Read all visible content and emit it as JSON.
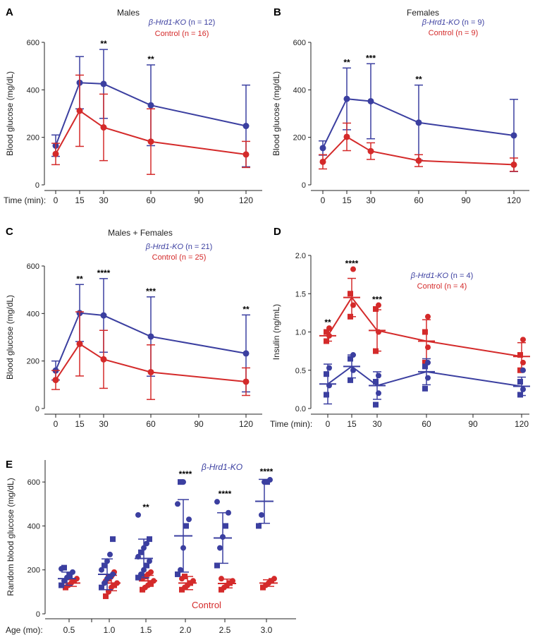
{
  "colors": {
    "ko": "#3b3fa0",
    "control": "#d42a2a",
    "axis": "#222222"
  },
  "labels": {
    "time": "Time (min):",
    "age": "Age (mo):",
    "ko": "β-Hrd1-KO",
    "control": "Control"
  },
  "chart_data": [
    {
      "panel": "A",
      "type": "line",
      "title": "Males",
      "ylabel": "Blood glucose (mg/dL)",
      "xlabel": "Time (min):",
      "ylim": [
        0,
        600
      ],
      "yticks": [
        0,
        200,
        400,
        600
      ],
      "x": [
        0,
        15,
        30,
        60,
        120
      ],
      "xticks": [
        0,
        15,
        30,
        60,
        90,
        120
      ],
      "legend": [
        {
          "label": "β-Hrd1-KO",
          "n": "(n = 12)"
        },
        {
          "label": "Control",
          "n": "(n = 16)"
        }
      ],
      "series": [
        {
          "name": "β-Hrd1-KO",
          "values": [
            165,
            430,
            425,
            335,
            248
          ],
          "err": [
            45,
            110,
            145,
            170,
            172
          ]
        },
        {
          "name": "Control",
          "values": [
            130,
            312,
            242,
            182,
            128
          ],
          "err": [
            45,
            150,
            140,
            138,
            55
          ]
        }
      ],
      "significance": [
        {
          "x": 30,
          "label": "**"
        },
        {
          "x": 60,
          "label": "**"
        }
      ]
    },
    {
      "panel": "B",
      "type": "line",
      "title": "Females",
      "ylabel": "Blood glucose (mg/dL)",
      "xlabel": "",
      "ylim": [
        0,
        600
      ],
      "yticks": [
        0,
        200,
        400,
        600
      ],
      "x": [
        0,
        15,
        30,
        60,
        120
      ],
      "xticks": [
        0,
        15,
        30,
        60,
        90,
        120
      ],
      "legend": [
        {
          "label": "β-Hrd1-KO",
          "n": "(n = 9)"
        },
        {
          "label": "Control",
          "n": "(n = 9)"
        }
      ],
      "series": [
        {
          "name": "β-Hrd1-KO",
          "values": [
            155,
            362,
            352,
            262,
            208
          ],
          "err": [
            30,
            130,
            158,
            158,
            152
          ]
        },
        {
          "name": "Control",
          "values": [
            97,
            202,
            142,
            102,
            85
          ],
          "err": [
            30,
            58,
            35,
            25,
            28
          ]
        }
      ],
      "significance": [
        {
          "x": 15,
          "label": "**"
        },
        {
          "x": 30,
          "label": "***"
        },
        {
          "x": 60,
          "label": "**"
        }
      ]
    },
    {
      "panel": "C",
      "type": "line",
      "title": "Males + Females",
      "ylabel": "Blood glucose (mg/dL)",
      "xlabel": "",
      "ylim": [
        0,
        600
      ],
      "yticks": [
        0,
        200,
        400,
        600
      ],
      "x": [
        0,
        15,
        30,
        60,
        120
      ],
      "xticks": [
        0,
        15,
        30,
        60,
        90,
        120
      ],
      "legend": [
        {
          "label": "β-Hrd1-KO",
          "n": "(n = 21)"
        },
        {
          "label": "Control",
          "n": "(n = 25)"
        }
      ],
      "series": [
        {
          "name": "β-Hrd1-KO",
          "values": [
            160,
            402,
            392,
            303,
            232
          ],
          "err": [
            40,
            120,
            155,
            167,
            162
          ]
        },
        {
          "name": "Control",
          "values": [
            120,
            272,
            207,
            153,
            113
          ],
          "err": [
            40,
            135,
            122,
            115,
            58
          ]
        }
      ],
      "significance": [
        {
          "x": 15,
          "label": "**"
        },
        {
          "x": 30,
          "label": "****"
        },
        {
          "x": 60,
          "label": "***"
        },
        {
          "x": 120,
          "label": "**"
        }
      ]
    },
    {
      "panel": "D",
      "type": "line",
      "title": "",
      "ylabel": "Insulin (ng/mL)",
      "xlabel": "Time (min):",
      "ylim": [
        0,
        2.0
      ],
      "yticks": [
        0.0,
        0.5,
        1.0,
        1.5,
        2.0
      ],
      "x": [
        0,
        15,
        30,
        60,
        120
      ],
      "xticks": [
        0,
        15,
        30,
        60,
        90,
        120
      ],
      "legend": [
        {
          "label": "β-Hrd1-KO",
          "n": "(n = 4)"
        },
        {
          "label": "Control",
          "n": "(n = 4)"
        }
      ],
      "series": [
        {
          "name": "Control",
          "values": [
            0.95,
            1.45,
            1.02,
            0.88,
            0.68
          ],
          "err": [
            0.07,
            0.25,
            0.27,
            0.28,
            0.18
          ],
          "points": [
            [
              0.88,
              0.95,
              1.0,
              1.05
            ],
            [
              1.2,
              1.35,
              1.5,
              1.82
            ],
            [
              0.75,
              1.0,
              1.3,
              1.35
            ],
            [
              0.6,
              0.8,
              1.0,
              1.2
            ],
            [
              0.5,
              0.6,
              0.7,
              0.9
            ]
          ]
        },
        {
          "name": "β-Hrd1-KO",
          "values": [
            0.32,
            0.55,
            0.3,
            0.48,
            0.29
          ],
          "err": [
            0.26,
            0.15,
            0.18,
            0.17,
            0.12
          ],
          "points": [
            [
              0.18,
              0.3,
              0.45,
              0.53
            ],
            [
              0.37,
              0.5,
              0.65,
              0.7
            ],
            [
              0.05,
              0.2,
              0.35,
              0.43
            ],
            [
              0.26,
              0.4,
              0.55,
              0.6
            ],
            [
              0.18,
              0.25,
              0.35,
              0.5
            ]
          ]
        }
      ],
      "significance": [
        {
          "x": 0,
          "label": "**"
        },
        {
          "x": 15,
          "label": "****"
        },
        {
          "x": 30,
          "label": "***"
        }
      ]
    },
    {
      "panel": "E",
      "type": "scatter",
      "title": "",
      "ylabel": "Random blood glucose (mg/dL)",
      "xlabel": "Age (mo):",
      "ylim": [
        0,
        700
      ],
      "yticks": [
        0,
        200,
        400,
        600
      ],
      "categories": [
        "0.5",
        "1.0",
        "1.5",
        "2.0",
        "2.5",
        "3.0"
      ],
      "series_labels": [
        "β-Hrd1-KO",
        "Control"
      ],
      "groups": [
        {
          "cat": "0.5",
          "ko": [
            130,
            150,
            165,
            175,
            190,
            205,
            210
          ],
          "ko_mean": 160,
          "ko_sd": 30,
          "ctrl": [
            120,
            130,
            140,
            150,
            160
          ],
          "ctrl_mean": 140,
          "ctrl_sd": 15
        },
        {
          "cat": "1.0",
          "ko": [
            120,
            140,
            160,
            170,
            180,
            200,
            220,
            240,
            270,
            340
          ],
          "ko_mean": 180,
          "ko_sd": 70,
          "ctrl": [
            80,
            100,
            120,
            130,
            140,
            150,
            160,
            170,
            190
          ],
          "ctrl_mean": 140,
          "ctrl_sd": 35
        },
        {
          "cat": "1.5",
          "ko": [
            165,
            180,
            200,
            220,
            240,
            260,
            280,
            300,
            320,
            340,
            450
          ],
          "ko_mean": 252,
          "ko_sd": 88,
          "ctrl": [
            110,
            120,
            130,
            140,
            150,
            160,
            170,
            180,
            190
          ],
          "ctrl_mean": 150,
          "ctrl_sd": 25
        },
        {
          "cat": "2.0",
          "ko": [
            180,
            200,
            300,
            400,
            430,
            500,
            600,
            600
          ],
          "ko_mean": 355,
          "ko_sd": 165,
          "ctrl": [
            110,
            120,
            130,
            140,
            150,
            160,
            170
          ],
          "ctrl_mean": 140,
          "ctrl_sd": 30
        },
        {
          "cat": "2.5",
          "ko": [
            220,
            300,
            350,
            400,
            460,
            510
          ],
          "ko_mean": 345,
          "ko_sd": 115,
          "ctrl": [
            110,
            120,
            130,
            140,
            150,
            160
          ],
          "ctrl_mean": 138,
          "ctrl_sd": 20
        },
        {
          "cat": "3.0",
          "ko": [
            400,
            450,
            600,
            600,
            610
          ],
          "ko_mean": 512,
          "ko_sd": 100,
          "ctrl": [
            120,
            130,
            140,
            150,
            160
          ],
          "ctrl_mean": 140,
          "ctrl_sd": 15
        }
      ],
      "significance": [
        {
          "cat": "1.5",
          "label": "**"
        },
        {
          "cat": "2.0",
          "label": "****"
        },
        {
          "cat": "2.5",
          "label": "****"
        },
        {
          "cat": "3.0",
          "label": "****"
        }
      ]
    }
  ]
}
